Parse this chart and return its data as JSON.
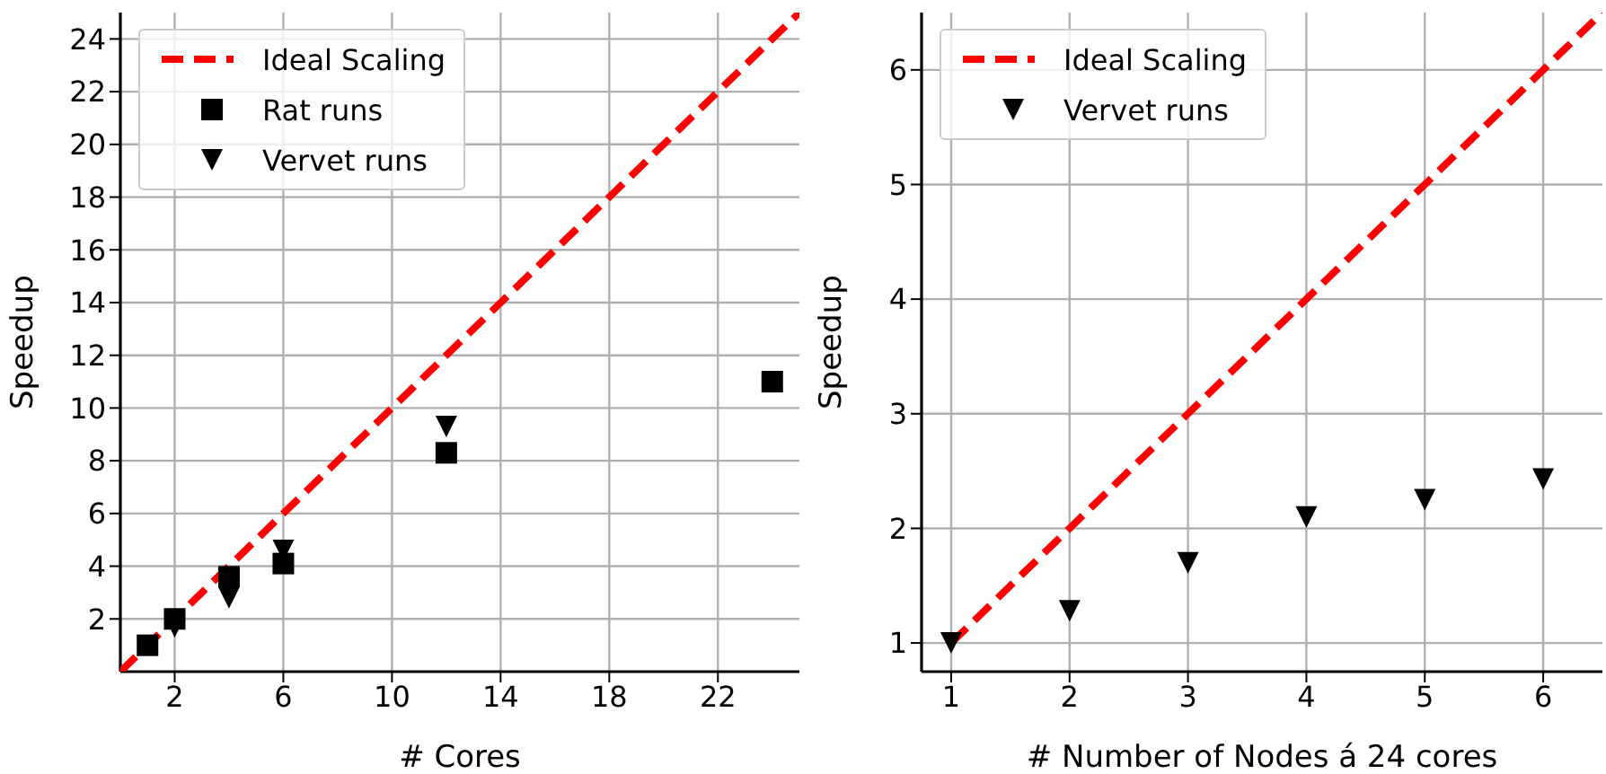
{
  "chart_data": [
    {
      "type": "scatter",
      "xlabel": "# Cores",
      "ylabel": "Speedup",
      "xlim": [
        0,
        25
      ],
      "ylim": [
        0,
        25
      ],
      "xticks": [
        2,
        6,
        10,
        14,
        18,
        22
      ],
      "yticks": [
        2,
        4,
        6,
        8,
        10,
        12,
        14,
        16,
        18,
        20,
        22,
        24
      ],
      "grid": true,
      "legend": "top left",
      "series": [
        {
          "name": "Ideal Scaling",
          "type": "line",
          "color": "#ff0000",
          "line_style": "dashed",
          "marker": "none",
          "x": [
            0,
            25
          ],
          "values": [
            0,
            25
          ]
        },
        {
          "name": "Rat runs",
          "type": "scatter",
          "color": "#000000",
          "marker": "square",
          "x": [
            1,
            2,
            4,
            6,
            12,
            24
          ],
          "values": [
            1,
            2,
            3.6,
            4.1,
            8.3,
            11
          ]
        },
        {
          "name": "Vervet runs",
          "type": "scatter",
          "color": "#000000",
          "marker": "triangle",
          "x": [
            2,
            4,
            6,
            12
          ],
          "values": [
            1.7,
            2.8,
            4.6,
            9.3
          ]
        }
      ]
    },
    {
      "type": "scatter",
      "xlabel": "# Number of Nodes á 24 cores",
      "ylabel": "Speedup",
      "xlim": [
        0.75,
        6.5
      ],
      "ylim": [
        0.75,
        6.5
      ],
      "xticks": [
        1,
        2,
        3,
        4,
        5,
        6
      ],
      "yticks": [
        1,
        2,
        3,
        4,
        5,
        6
      ],
      "grid": true,
      "legend": "top left",
      "series": [
        {
          "name": "Ideal Scaling",
          "type": "line",
          "color": "#ff0000",
          "line_style": "dashed",
          "marker": "none",
          "x": [
            1,
            6.5
          ],
          "values": [
            1,
            6.5
          ]
        },
        {
          "name": "Vervet runs",
          "type": "scatter",
          "color": "#000000",
          "marker": "triangle",
          "x": [
            1,
            2,
            3,
            4,
            5,
            6
          ],
          "values": [
            1.0,
            1.28,
            1.7,
            2.1,
            2.25,
            2.43
          ]
        }
      ]
    }
  ]
}
